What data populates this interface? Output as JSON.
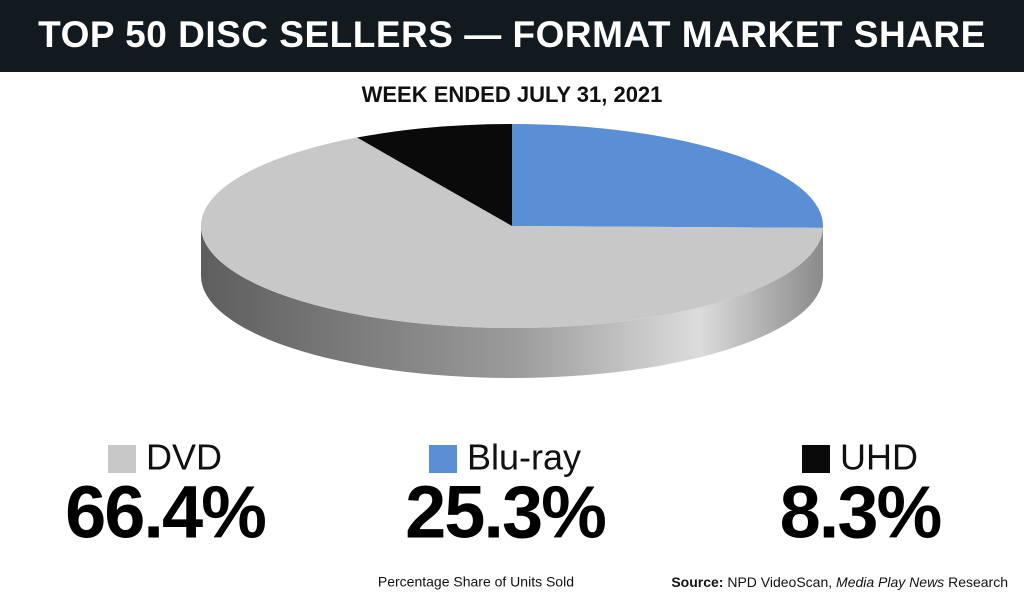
{
  "chart_data": {
    "type": "pie3d",
    "title": "TOP 50 DISC SELLERS — FORMAT MARKET SHARE",
    "subtitle": "WEEK ENDED JULY 31, 2021",
    "series": [
      {
        "name": "DVD",
        "color": "#c8c8c8",
        "values": [
          66.4
        ],
        "value_labels": [
          "66.4%"
        ]
      },
      {
        "name": "Blu-ray",
        "color": "#5a8fd5",
        "values": [
          25.3
        ],
        "value_labels": [
          "25.3%"
        ]
      },
      {
        "name": "UHD",
        "color": "#0a0a0a",
        "values": [
          8.3
        ],
        "value_labels": [
          "8.3%"
        ]
      }
    ],
    "note": "Percentage Share of Units Sold",
    "source": {
      "label": "Source:",
      "text": "NPD VideoScan,",
      "italic": "Media Play News",
      "tail": "Research"
    }
  }
}
